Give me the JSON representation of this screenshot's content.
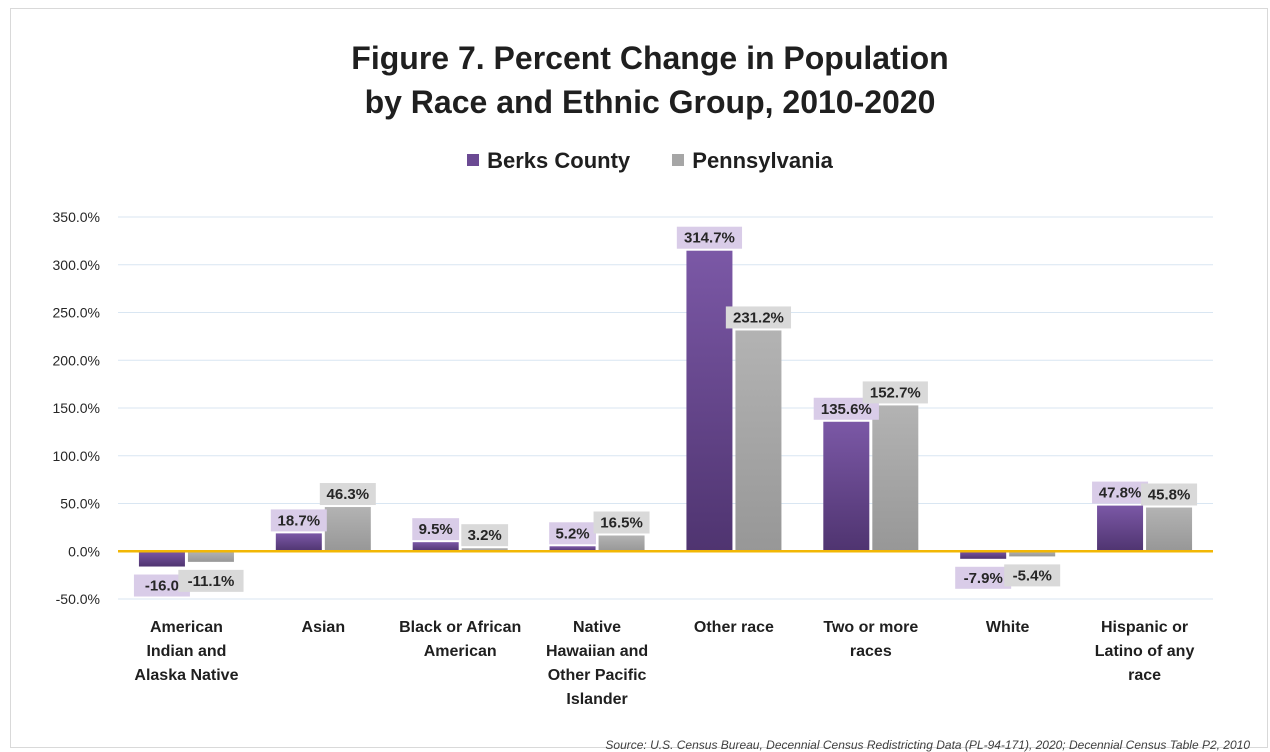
{
  "chart_data": {
    "type": "bar",
    "title_lines": [
      "Figure 7. Percent Change in Population",
      "by Race and Ethnic Group, 2010-2020"
    ],
    "categories": [
      [
        "American",
        "Indian and",
        "Alaska Native"
      ],
      [
        "Asian"
      ],
      [
        "Black or African",
        "American"
      ],
      [
        "Native",
        "Hawaiian and",
        "Other Pacific",
        "Islander"
      ],
      [
        "Other race"
      ],
      [
        "Two or more",
        "races"
      ],
      [
        "White"
      ],
      [
        "Hispanic or",
        "Latino of any",
        "race"
      ]
    ],
    "series": [
      {
        "name": "Berks County",
        "color": "#6b4a93",
        "values": [
          -16.0,
          18.7,
          9.5,
          5.2,
          314.7,
          135.6,
          -7.9,
          47.8
        ],
        "labels": [
          "-16.0",
          "18.7%",
          "9.5%",
          "5.2%",
          "314.7%",
          "135.6%",
          "-7.9%",
          "47.8%"
        ]
      },
      {
        "name": "Pennsylvania",
        "color": "#a6a6a6",
        "values": [
          -11.1,
          46.3,
          3.2,
          16.5,
          231.2,
          152.7,
          -5.4,
          45.8
        ],
        "labels": [
          "-11.1%",
          "46.3%",
          "3.2%",
          "16.5%",
          "231.2%",
          "152.7%",
          "-5.4%",
          "45.8%"
        ]
      }
    ],
    "yticks": [
      "350.0%",
      "300.0%",
      "250.0%",
      "200.0%",
      "150.0%",
      "100.0%",
      "50.0%",
      "0.0%",
      "-50.0%"
    ],
    "ylim": [
      -50,
      350
    ],
    "grid": true,
    "legend_position": "top-center",
    "zero_line_color": "#f2b705"
  },
  "source": "Source: U.S. Census Bureau, Decennial Census Redistricting Data (PL-94-171), 2020; Decennial Census Table P2, 2010"
}
